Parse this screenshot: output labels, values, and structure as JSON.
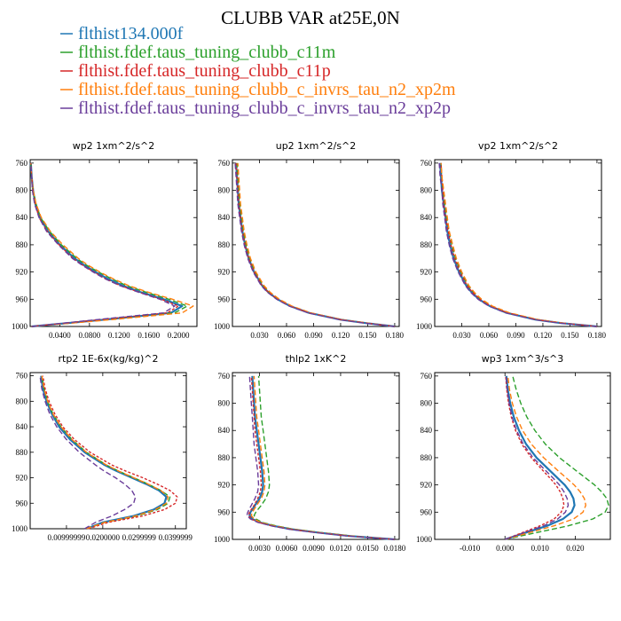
{
  "figure": {
    "title": "CLUBB VAR at25E,0N",
    "colors": [
      "#1f77b4",
      "#2ca02c",
      "#d62728",
      "#ff7f0e",
      "#6a3d9a"
    ]
  },
  "chart_data": [
    {
      "type": "line",
      "title": "wp2 1xm^2/s^2",
      "xlim": [
        0,
        0.225
      ],
      "ylim": [
        1000,
        755
      ],
      "xticks": [
        "0.0400",
        "0.0800",
        "0.1200",
        "0.1600",
        "0.2000"
      ],
      "yticks": [
        "760",
        "800",
        "840",
        "880",
        "920",
        "960",
        "1000"
      ],
      "y": [
        1000,
        990,
        980,
        970,
        960,
        950,
        940,
        930,
        920,
        910,
        900,
        880,
        860,
        840,
        820,
        800,
        780,
        760
      ],
      "series": [
        {
          "name": "flthist134.000f",
          "x": [
            0.002,
            0.1,
            0.19,
            0.205,
            0.18,
            0.15,
            0.125,
            0.105,
            0.088,
            0.073,
            0.06,
            0.04,
            0.024,
            0.013,
            0.007,
            0.004,
            0.002,
            0.001
          ]
        },
        {
          "name": "flthist.fdef.taus_tuning_clubb_c11m",
          "x": [
            0.002,
            0.105,
            0.195,
            0.212,
            0.187,
            0.157,
            0.13,
            0.11,
            0.092,
            0.076,
            0.063,
            0.042,
            0.026,
            0.014,
            0.008,
            0.004,
            0.002,
            0.001
          ]
        },
        {
          "name": "flthist.fdef.taus_tuning_clubb_c11p",
          "x": [
            0.002,
            0.095,
            0.185,
            0.2,
            0.177,
            0.148,
            0.122,
            0.102,
            0.086,
            0.071,
            0.058,
            0.039,
            0.023,
            0.012,
            0.007,
            0.004,
            0.002,
            0.001
          ]
        },
        {
          "name": "flthist.fdef.taus_tuning_clubb_c_invrs_tau_n2_xp2m",
          "x": [
            0.002,
            0.11,
            0.205,
            0.22,
            0.192,
            0.16,
            0.133,
            0.112,
            0.094,
            0.078,
            0.065,
            0.044,
            0.027,
            0.015,
            0.008,
            0.004,
            0.002,
            0.001
          ]
        },
        {
          "name": "flthist.fdef.taus_tuning_clubb_c_invrs_tau_n2_xp2p",
          "x": [
            0.002,
            0.09,
            0.18,
            0.195,
            0.175,
            0.147,
            0.121,
            0.101,
            0.085,
            0.07,
            0.057,
            0.038,
            0.022,
            0.012,
            0.006,
            0.003,
            0.002,
            0.001
          ]
        }
      ]
    },
    {
      "type": "line",
      "title": "up2 1xm^2/s^2",
      "xlim": [
        0,
        0.185
      ],
      "ylim": [
        1000,
        755
      ],
      "xticks": [
        "0.030",
        "0.060",
        "0.090",
        "0.120",
        "0.150",
        "0.180"
      ],
      "yticks": [
        "760",
        "800",
        "840",
        "880",
        "920",
        "960",
        "1000"
      ],
      "y": [
        1000,
        995,
        990,
        980,
        970,
        960,
        950,
        940,
        920,
        900,
        880,
        860,
        840,
        820,
        800,
        780,
        760
      ],
      "series": [
        {
          "name": "flthist134.000f",
          "x": [
            0.18,
            0.148,
            0.12,
            0.085,
            0.064,
            0.05,
            0.04,
            0.033,
            0.024,
            0.018,
            0.014,
            0.011,
            0.009,
            0.007,
            0.006,
            0.005,
            0.004
          ]
        },
        {
          "name": "flthist.fdef.taus_tuning_clubb_c11m",
          "x": [
            0.18,
            0.149,
            0.121,
            0.086,
            0.065,
            0.051,
            0.041,
            0.034,
            0.025,
            0.019,
            0.015,
            0.012,
            0.01,
            0.008,
            0.007,
            0.006,
            0.005
          ]
        },
        {
          "name": "flthist.fdef.taus_tuning_clubb_c11p",
          "x": [
            0.18,
            0.148,
            0.12,
            0.085,
            0.064,
            0.05,
            0.04,
            0.033,
            0.024,
            0.018,
            0.014,
            0.011,
            0.009,
            0.007,
            0.006,
            0.005,
            0.004
          ]
        },
        {
          "name": "flthist.fdef.taus_tuning_clubb_c_invrs_tau_n2_xp2m",
          "x": [
            0.18,
            0.15,
            0.122,
            0.087,
            0.066,
            0.052,
            0.042,
            0.035,
            0.026,
            0.02,
            0.016,
            0.013,
            0.011,
            0.009,
            0.008,
            0.007,
            0.006
          ]
        },
        {
          "name": "flthist.fdef.taus_tuning_clubb_c_invrs_tau_n2_xp2p",
          "x": [
            0.18,
            0.147,
            0.119,
            0.084,
            0.063,
            0.049,
            0.039,
            0.032,
            0.023,
            0.017,
            0.013,
            0.01,
            0.008,
            0.006,
            0.005,
            0.004,
            0.003
          ]
        }
      ]
    },
    {
      "type": "line",
      "title": "vp2 1xm^2/s^2",
      "xlim": [
        0,
        0.185
      ],
      "ylim": [
        1000,
        755
      ],
      "xticks": [
        "0.030",
        "0.060",
        "0.090",
        "0.120",
        "0.150",
        "0.180"
      ],
      "yticks": [
        "760",
        "800",
        "840",
        "880",
        "920",
        "960",
        "1000"
      ],
      "y": [
        1000,
        995,
        990,
        980,
        970,
        960,
        950,
        940,
        920,
        900,
        880,
        860,
        840,
        820,
        800,
        780,
        760
      ],
      "series": [
        {
          "name": "flthist134.000f",
          "x": [
            0.18,
            0.14,
            0.112,
            0.08,
            0.061,
            0.049,
            0.041,
            0.035,
            0.027,
            0.021,
            0.017,
            0.014,
            0.012,
            0.01,
            0.008,
            0.007,
            0.006
          ]
        },
        {
          "name": "flthist.fdef.taus_tuning_clubb_c11m",
          "x": [
            0.18,
            0.142,
            0.114,
            0.082,
            0.063,
            0.051,
            0.043,
            0.037,
            0.029,
            0.023,
            0.019,
            0.016,
            0.013,
            0.011,
            0.009,
            0.008,
            0.007
          ]
        },
        {
          "name": "flthist.fdef.taus_tuning_clubb_c11p",
          "x": [
            0.18,
            0.141,
            0.113,
            0.081,
            0.062,
            0.05,
            0.042,
            0.036,
            0.028,
            0.022,
            0.018,
            0.015,
            0.012,
            0.01,
            0.009,
            0.008,
            0.007
          ]
        },
        {
          "name": "flthist.fdef.taus_tuning_clubb_c_invrs_tau_n2_xp2m",
          "x": [
            0.18,
            0.143,
            0.115,
            0.083,
            0.064,
            0.052,
            0.044,
            0.038,
            0.03,
            0.024,
            0.02,
            0.016,
            0.014,
            0.012,
            0.01,
            0.008,
            0.007
          ]
        },
        {
          "name": "flthist.fdef.taus_tuning_clubb_c_invrs_tau_n2_xp2p",
          "x": [
            0.18,
            0.139,
            0.111,
            0.079,
            0.06,
            0.048,
            0.04,
            0.034,
            0.026,
            0.02,
            0.016,
            0.013,
            0.011,
            0.009,
            0.008,
            0.006,
            0.005
          ]
        }
      ]
    },
    {
      "type": "line",
      "title": "rtp2 1E-6x(kg/kg)^2",
      "xlim": [
        0,
        0.043
      ],
      "ylim": [
        1000,
        755
      ],
      "xticks": [
        "0.00999999",
        "0.0200000",
        "0.0299999",
        "0.0399999"
      ],
      "yticks": [
        "760",
        "800",
        "840",
        "880",
        "920",
        "960",
        "1000"
      ],
      "y": [
        1000,
        990,
        980,
        970,
        960,
        950,
        940,
        930,
        920,
        910,
        900,
        880,
        860,
        840,
        820,
        800,
        780,
        760
      ],
      "series": [
        {
          "name": "flthist134.000f",
          "x": [
            0.0155,
            0.02,
            0.0285,
            0.034,
            0.037,
            0.0375,
            0.0355,
            0.032,
            0.028,
            0.024,
            0.0205,
            0.015,
            0.011,
            0.008,
            0.006,
            0.0045,
            0.0035,
            0.003
          ]
        },
        {
          "name": "flthist.fdef.taus_tuning_clubb_c11m",
          "x": [
            0.0155,
            0.0205,
            0.0295,
            0.035,
            0.038,
            0.0385,
            0.036,
            0.0325,
            0.0285,
            0.0245,
            0.021,
            0.0155,
            0.0115,
            0.0085,
            0.0063,
            0.0048,
            0.0038,
            0.0032
          ]
        },
        {
          "name": "flthist.fdef.taus_tuning_clubb_c11p",
          "x": [
            0.016,
            0.0215,
            0.031,
            0.037,
            0.04,
            0.0405,
            0.0385,
            0.035,
            0.031,
            0.0265,
            0.0225,
            0.0165,
            0.0122,
            0.009,
            0.0068,
            0.0052,
            0.0041,
            0.0035
          ]
        },
        {
          "name": "flthist.fdef.taus_tuning_clubb_c_invrs_tau_n2_xp2m",
          "x": [
            0.0155,
            0.0205,
            0.029,
            0.0345,
            0.0375,
            0.038,
            0.036,
            0.0325,
            0.0285,
            0.0245,
            0.021,
            0.0155,
            0.0115,
            0.0085,
            0.0063,
            0.0048,
            0.0038,
            0.0032
          ]
        },
        {
          "name": "flthist.fdef.taus_tuning_clubb_c_invrs_tau_n2_xp2p",
          "x": [
            0.015,
            0.018,
            0.0225,
            0.026,
            0.0285,
            0.029,
            0.028,
            0.026,
            0.0235,
            0.0205,
            0.018,
            0.0135,
            0.01,
            0.0073,
            0.0054,
            0.0041,
            0.0032,
            0.0027
          ]
        }
      ]
    },
    {
      "type": "line",
      "title": "thlp2 1xK^2",
      "xlim": [
        0,
        0.0185
      ],
      "ylim": [
        1000,
        755
      ],
      "xticks": [
        "0.0030",
        "0.0060",
        "0.0090",
        "0.0120",
        "0.0150",
        "0.0180"
      ],
      "yticks": [
        "760",
        "800",
        "840",
        "880",
        "920",
        "960",
        "1000"
      ],
      "y": [
        1000,
        995,
        990,
        985,
        980,
        975,
        970,
        965,
        960,
        950,
        940,
        930,
        920,
        900,
        880,
        860,
        840,
        820,
        800,
        780,
        760
      ],
      "series": [
        {
          "name": "flthist134.000f",
          "x": [
            0.018,
            0.013,
            0.0095,
            0.0065,
            0.0045,
            0.003,
            0.0022,
            0.0019,
            0.002,
            0.0025,
            0.003,
            0.0033,
            0.0034,
            0.0033,
            0.0031,
            0.0029,
            0.0027,
            0.0025,
            0.0024,
            0.0023,
            0.0022
          ]
        },
        {
          "name": "flthist.fdef.taus_tuning_clubb_c11m",
          "x": [
            0.018,
            0.0132,
            0.0098,
            0.0068,
            0.0048,
            0.0033,
            0.0026,
            0.0024,
            0.0026,
            0.0032,
            0.0037,
            0.004,
            0.0041,
            0.004,
            0.0038,
            0.0036,
            0.0034,
            0.0032,
            0.0031,
            0.003,
            0.0029
          ]
        },
        {
          "name": "flthist.fdef.taus_tuning_clubb_c11p",
          "x": [
            0.018,
            0.0129,
            0.0094,
            0.0064,
            0.0044,
            0.0029,
            0.0021,
            0.0018,
            0.0019,
            0.0024,
            0.0028,
            0.0031,
            0.0032,
            0.0031,
            0.0029,
            0.0027,
            0.0025,
            0.0024,
            0.0023,
            0.0022,
            0.0021
          ]
        },
        {
          "name": "flthist.fdef.taus_tuning_clubb_c_invrs_tau_n2_xp2m",
          "x": [
            0.018,
            0.0131,
            0.0096,
            0.0066,
            0.0046,
            0.0031,
            0.0024,
            0.0021,
            0.0022,
            0.0027,
            0.0032,
            0.0035,
            0.0036,
            0.0035,
            0.0033,
            0.0031,
            0.0029,
            0.0027,
            0.0026,
            0.0025,
            0.0024
          ]
        },
        {
          "name": "flthist.fdef.taus_tuning_clubb_c_invrs_tau_n2_xp2p",
          "x": [
            0.018,
            0.0128,
            0.0093,
            0.0063,
            0.0043,
            0.0028,
            0.002,
            0.0016,
            0.0017,
            0.0021,
            0.0025,
            0.0028,
            0.0029,
            0.0028,
            0.0026,
            0.0024,
            0.0023,
            0.0022,
            0.0021,
            0.002,
            0.0019
          ]
        }
      ]
    },
    {
      "type": "line",
      "title": "wp3 1xm^3/s^3",
      "xlim": [
        -0.02,
        0.03
      ],
      "ylim": [
        1000,
        755
      ],
      "xticks": [
        "-0.010",
        "0.000",
        "0.010",
        "0.020"
      ],
      "yticks": [
        "760",
        "800",
        "840",
        "880",
        "920",
        "960",
        "1000"
      ],
      "y": [
        1000,
        990,
        980,
        970,
        960,
        950,
        940,
        930,
        920,
        910,
        900,
        880,
        860,
        840,
        820,
        800,
        780,
        760
      ],
      "series": [
        {
          "name": "flthist134.000f",
          "x": [
            0.0,
            0.006,
            0.012,
            0.0165,
            0.019,
            0.0198,
            0.0195,
            0.0185,
            0.017,
            0.015,
            0.013,
            0.009,
            0.006,
            0.004,
            0.0025,
            0.0015,
            0.0008,
            0.0004
          ]
        },
        {
          "name": "flthist.fdef.taus_tuning_clubb_c11m",
          "x": [
            0.0,
            0.009,
            0.018,
            0.025,
            0.0285,
            0.0295,
            0.029,
            0.0275,
            0.0255,
            0.023,
            0.0205,
            0.0155,
            0.0115,
            0.0085,
            0.0062,
            0.0045,
            0.0032,
            0.0022
          ]
        },
        {
          "name": "flthist.fdef.taus_tuning_clubb_c11p",
          "x": [
            0.0,
            0.005,
            0.01,
            0.014,
            0.016,
            0.0168,
            0.0165,
            0.0157,
            0.0145,
            0.0128,
            0.011,
            0.0075,
            0.0048,
            0.003,
            0.0018,
            0.001,
            0.0005,
            0.0002
          ]
        },
        {
          "name": "flthist.fdef.taus_tuning_clubb_c_invrs_tau_n2_xp2m",
          "x": [
            0.0,
            0.007,
            0.014,
            0.0195,
            0.0222,
            0.023,
            0.0226,
            0.0214,
            0.0197,
            0.0175,
            0.0153,
            0.011,
            0.0075,
            0.005,
            0.0033,
            0.0021,
            0.0013,
            0.0008
          ]
        },
        {
          "name": "flthist.fdef.taus_tuning_clubb_c_invrs_tau_n2_xp2p",
          "x": [
            0.0,
            0.0055,
            0.011,
            0.015,
            0.0172,
            0.018,
            0.0177,
            0.0168,
            0.0155,
            0.0137,
            0.0118,
            0.008,
            0.0052,
            0.0033,
            0.002,
            0.0012,
            0.0006,
            0.0003
          ]
        }
      ]
    }
  ]
}
